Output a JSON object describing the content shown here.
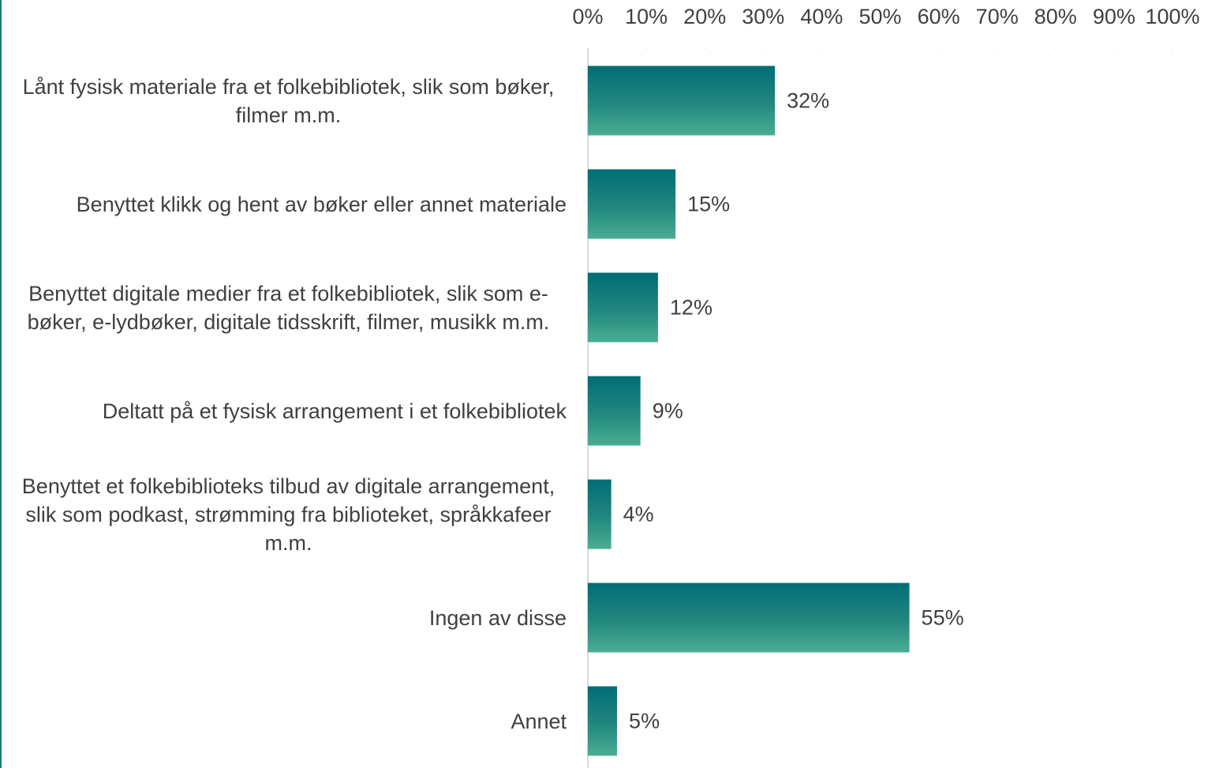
{
  "chart_data": {
    "type": "bar",
    "orientation": "horizontal",
    "categories": [
      "Lånt fysisk materiale fra et folkebibliotek, slik som bøker, filmer m.m.",
      "Benyttet klikk og hent av bøker eller annet materiale",
      "Benyttet digitale medier fra et folkebibliotek, slik som e-bøker, e-lydbøker, digitale tidsskrift, filmer, musikk m.m.",
      "Deltatt på et fysisk arrangement i et folkebibliotek",
      "Benyttet et folkebiblioteks tilbud av digitale arrangement, slik som podkast, strømming fra biblioteket, språkkafeer m.m.",
      "Ingen av disse",
      "Annet"
    ],
    "values": [
      32,
      15,
      12,
      9,
      4,
      55,
      5
    ],
    "value_labels": [
      "32%",
      "15%",
      "12%",
      "9%",
      "4%",
      "55%",
      "5%"
    ],
    "color": "#006d75",
    "xlim": [
      0,
      100
    ],
    "xticks": [
      {
        "value": 0,
        "label": "0%"
      },
      {
        "value": 10,
        "label": "10%"
      },
      {
        "value": 20,
        "label": "20%"
      },
      {
        "value": 30,
        "label": "30%"
      },
      {
        "value": 40,
        "label": "40%"
      },
      {
        "value": 50,
        "label": "50%"
      },
      {
        "value": 60,
        "label": "60%"
      },
      {
        "value": 70,
        "label": "70%"
      },
      {
        "value": 80,
        "label": "80%"
      },
      {
        "value": 90,
        "label": "90%"
      },
      {
        "value": 100,
        "label": "100%"
      }
    ],
    "grid": false
  }
}
